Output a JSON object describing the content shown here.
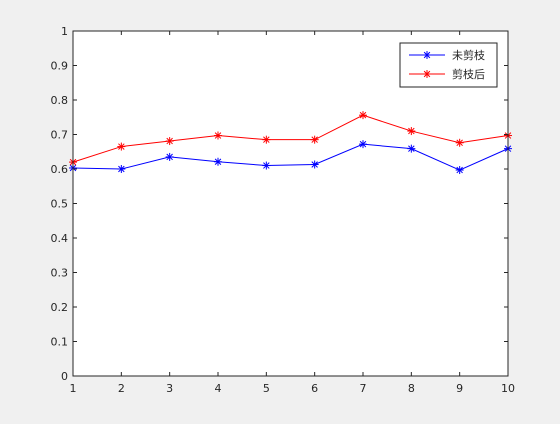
{
  "chart_data": {
    "type": "line",
    "title": "",
    "xlabel": "",
    "ylabel": "",
    "xlim": [
      1,
      10
    ],
    "ylim": [
      0,
      1
    ],
    "xticks": [
      "1",
      "2",
      "3",
      "4",
      "5",
      "6",
      "7",
      "8",
      "9",
      "10"
    ],
    "yticks": [
      "0",
      "0.1",
      "0.2",
      "0.3",
      "0.4",
      "0.5",
      "0.6",
      "0.7",
      "0.8",
      "0.9",
      "1"
    ],
    "grid": false,
    "legend_position": "top-right",
    "x": [
      1,
      2,
      3,
      4,
      5,
      6,
      7,
      8,
      9,
      10
    ],
    "series": [
      {
        "name": "未剪枝",
        "color": "#0000ff",
        "marker": "asterisk",
        "values": [
          0.603,
          0.6,
          0.635,
          0.621,
          0.61,
          0.613,
          0.672,
          0.659,
          0.597,
          0.659
        ]
      },
      {
        "name": "剪枝后",
        "color": "#ff0000",
        "marker": "asterisk",
        "values": [
          0.62,
          0.665,
          0.681,
          0.697,
          0.685,
          0.685,
          0.756,
          0.71,
          0.676,
          0.697
        ]
      }
    ]
  }
}
